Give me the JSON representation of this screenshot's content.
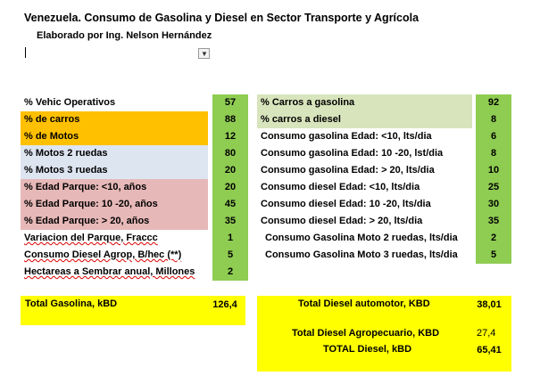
{
  "title": "Venezuela. Consumo de Gasolina y Diesel en Sector Transporte y Agrícola",
  "subtitle": "Elaborado por Ing. Nelson Hernández",
  "dropdown_icon": "▼",
  "left_table": [
    {
      "label": "% Vehic Operativos",
      "value": "57"
    },
    {
      "label": "% de carros",
      "value": "88"
    },
    {
      "label": "% de Motos",
      "value": "12"
    },
    {
      "label": "% Motos 2 ruedas",
      "value": "80"
    },
    {
      "label": "% Motos 3 ruedas",
      "value": "20"
    },
    {
      "label": "% Edad Parque: <10, años",
      "value": "20"
    },
    {
      "label": "% Edad Parque: 10 -20, años",
      "value": "45"
    },
    {
      "label": "% Edad Parque: > 20, años",
      "value": "35"
    },
    {
      "label": "Variacion del Parque, Fraccc",
      "value": "1"
    },
    {
      "label": "Consumo Diesel Agrop, B/hec (**)",
      "value": "5"
    },
    {
      "label": "Hectareas a Sembrar anual, Millones",
      "value": "2"
    }
  ],
  "right_table": [
    {
      "label": "% Carros a gasolina",
      "value": "92"
    },
    {
      "label": "% carros a diesel",
      "value": "8"
    },
    {
      "label": "Consumo gasolina Edad: <10,  lts/dia",
      "value": "6"
    },
    {
      "label": "Consumo  gasolina Edad: 10 -20, lst/dia",
      "value": "8"
    },
    {
      "label": "Consumo gasolina Edad: > 20, lts/dia",
      "value": "10"
    },
    {
      "label": "Consumo diesel Edad: <10,  lts/dia",
      "value": "25"
    },
    {
      "label": "Consumo  diesel Edad: 10 -20, lts/dia",
      "value": "30"
    },
    {
      "label": "Consumo diesel Edad: > 20, lts/dia",
      "value": "35"
    },
    {
      "label": "Consumo Gasolina Moto 2 ruedas, lts/dia",
      "value": "2"
    },
    {
      "label": "Consumo Gasolina Moto 3 ruedas, lts/dia",
      "value": "5"
    }
  ],
  "totals": {
    "gasolina_label": "Total Gasolina, kBD",
    "gasolina_value": "126,4",
    "diesel_auto_label": "Total Diesel automotor, KBD",
    "diesel_auto_value": "38,01",
    "diesel_agro_label": "Total Diesel Agropecuario, KBD",
    "diesel_agro_value": "27,4",
    "diesel_total_label": "TOTAL Diesel, kBD",
    "diesel_total_value": "65,41"
  },
  "colors": {
    "value_green": "#8fcc52",
    "orange": "#ffc000",
    "light_blue": "#dde5f1",
    "pink": "#e6b8b7",
    "light_green": "#d8e4bc",
    "total_yellow": "#ffff00"
  }
}
